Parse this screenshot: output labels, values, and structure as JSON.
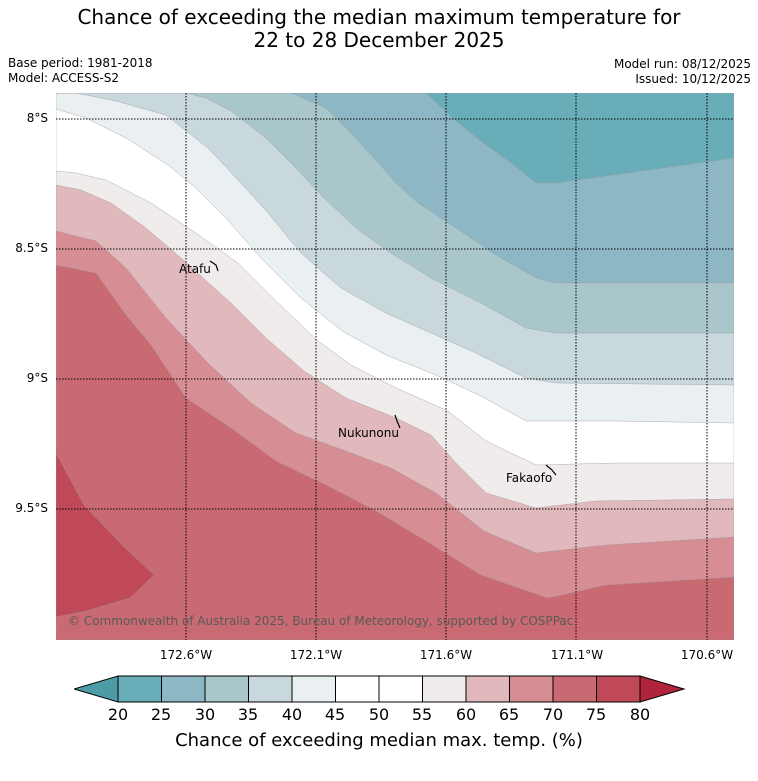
{
  "title": {
    "line1": "Chance of exceeding the median maximum temperature for",
    "line2": "22 to 28 December 2025"
  },
  "meta": {
    "base_period": "Base period: 1981-2018",
    "model": "Model: ACCESS-S2",
    "model_run": "Model run: 08/12/2025",
    "issued": "Issued: 10/12/2025"
  },
  "map": {
    "latitude_labels": [
      "8°S",
      "8.5°S",
      "9°S",
      "9.5°S"
    ],
    "longitude_labels": [
      "172.6°W",
      "172.1°W",
      "171.6°W",
      "171.1°W",
      "170.6°W"
    ],
    "places": [
      "Atafu",
      "Nukunonu",
      "Fakaofo"
    ],
    "copyright": "© Commonwealth of Australia 2025, Bureau of Meteorology, supported by COSPPac"
  },
  "colorbar": {
    "ticks": [
      "20",
      "25",
      "30",
      "35",
      "40",
      "45",
      "50",
      "55",
      "60",
      "65",
      "70",
      "75",
      "80"
    ],
    "colors": {
      "below20": "#4e9ba8",
      "c20_25": "#69adb9",
      "c25_30": "#8db7c4",
      "c30_35": "#a9c7cb",
      "c35_40": "#c8d8dd",
      "c40_45": "#eaeff2",
      "c45_55": "#ffffff",
      "c55_60": "#efeceb",
      "c60_65": "#e1b9bd",
      "c65_70": "#d68d94",
      "c70_75": "#c96a72",
      "c75_80": "#bf4956",
      "above80": "#b0243b"
    },
    "label": "Chance of exceeding median max. temp. (%)"
  }
}
